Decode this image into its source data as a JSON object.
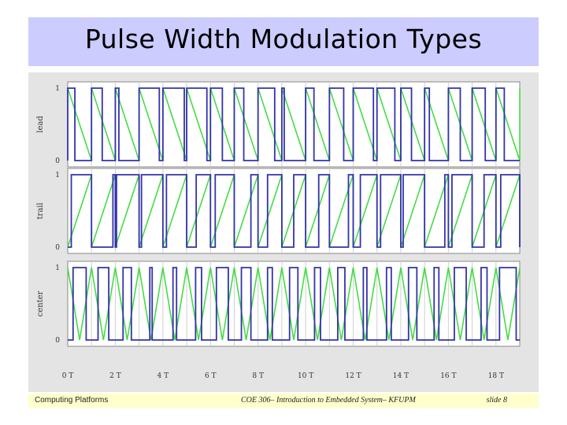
{
  "slide": {
    "title": "Pulse Width Modulation Types"
  },
  "footer": {
    "left": "Computing Platforms",
    "center": "COE 306– Introduction to Embedded System– KFUPM",
    "right": "slide 8"
  },
  "colors": {
    "title_band": "#ccccff",
    "footer_band": "#ffffcc",
    "carrier": "#44dd44",
    "pwm": "#3333aa"
  },
  "chart_data": {
    "type": "line",
    "xlabel": "",
    "xticks": [
      "0 T",
      "2 T",
      "4 T",
      "6 T",
      "8 T",
      "10 T",
      "12 T",
      "14 T",
      "16 T",
      "18 T"
    ],
    "xlim": [
      0,
      19
    ],
    "ylim": [
      0,
      1
    ],
    "panels": [
      {
        "ylabel": "lead",
        "yticks": [
          "0",
          "1"
        ],
        "carrier": "sawtooth-falling",
        "duty_cycle": [
          0.3,
          0.45,
          0.15,
          0.85,
          0.9,
          0.85,
          0.5,
          0.4,
          0.7,
          0.1,
          0.35,
          0.6,
          0.85,
          0.75,
          0.45,
          0.2,
          0.5,
          0.55,
          0.35
        ]
      },
      {
        "ylabel": "trail",
        "yticks": [
          "0",
          "1"
        ],
        "carrier": "sawtooth-rising",
        "duty_cycle": [
          0.85,
          0.1,
          0.95,
          0.9,
          0.85,
          0.6,
          0.8,
          0.3,
          0.6,
          0.5,
          0.45,
          0.2,
          0.7,
          0.85,
          0.9,
          0.15,
          0.85,
          0.5,
          0.8
        ]
      },
      {
        "ylabel": "center",
        "yticks": [
          "0",
          "1"
        ],
        "carrier": "triangle",
        "duty_cycle": [
          0.55,
          0.45,
          0.35,
          0.1,
          0.15,
          0.25,
          0.5,
          0.4,
          0.2,
          0.35,
          0.25,
          0.3,
          0.15,
          0.2,
          0.35,
          0.2,
          0.5,
          0.25,
          0.7
        ]
      }
    ]
  }
}
